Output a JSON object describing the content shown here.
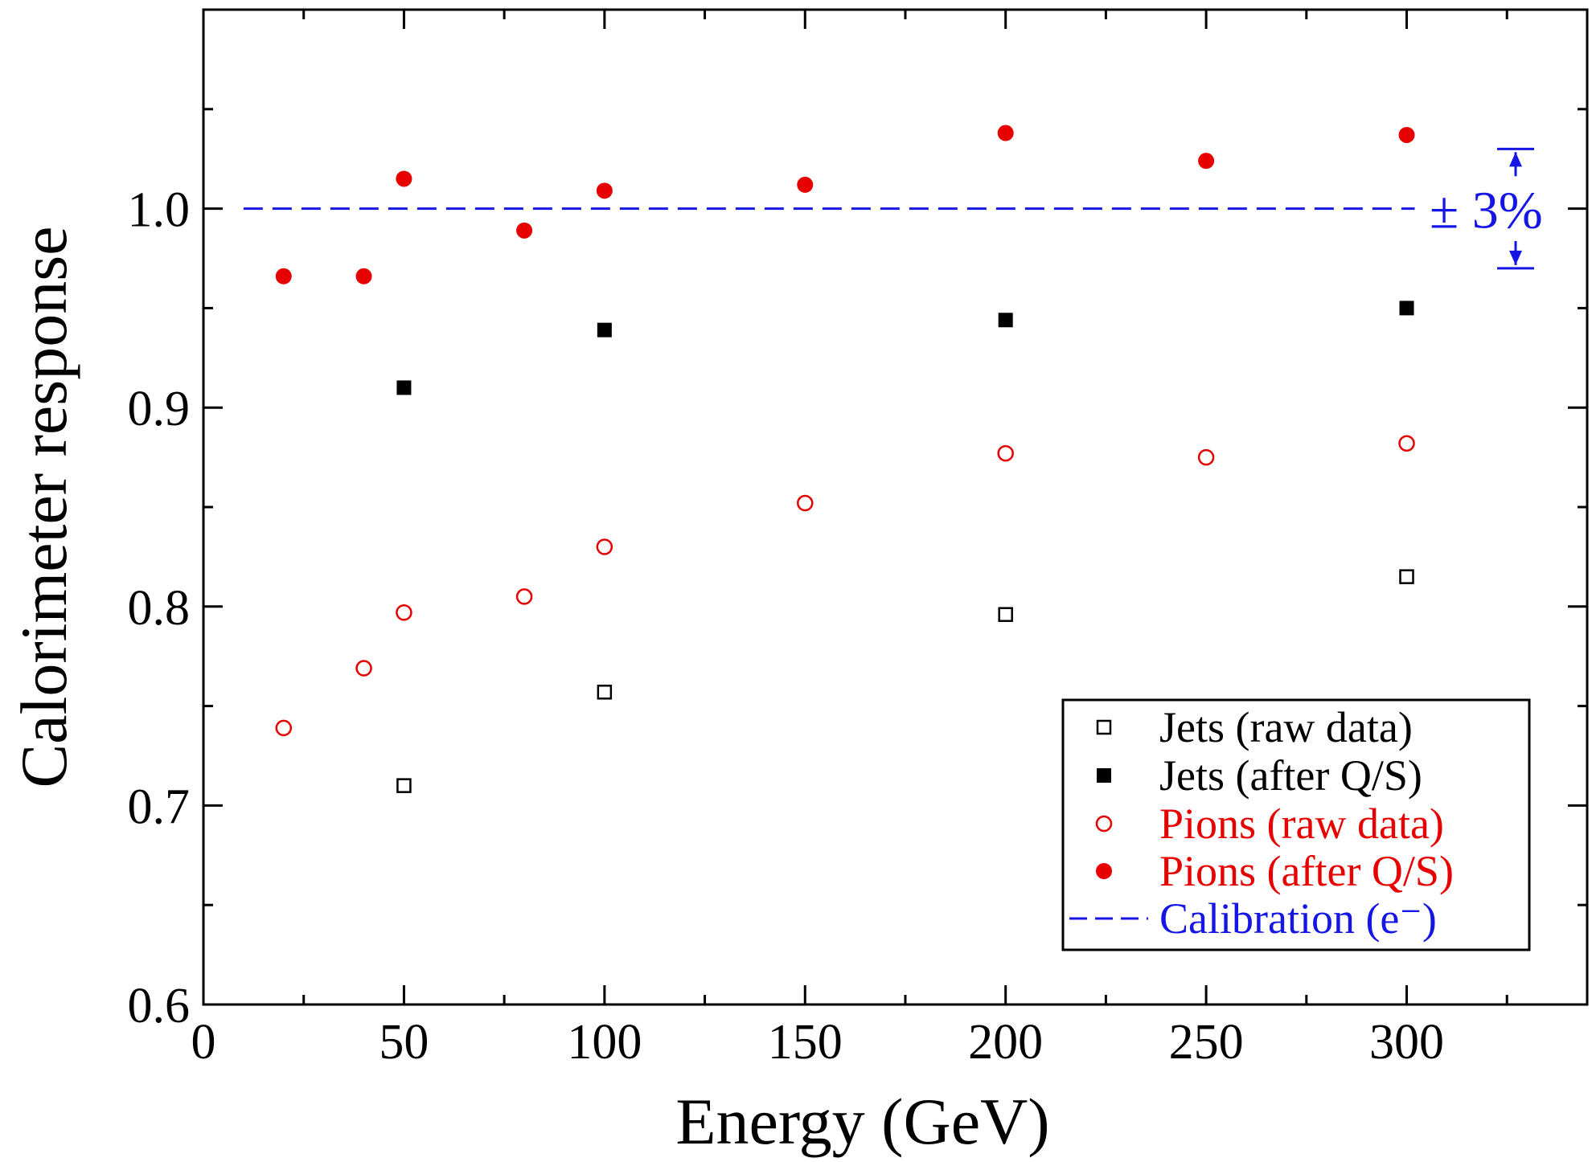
{
  "chart_data": {
    "type": "scatter",
    "xlabel": "Energy (GeV)",
    "ylabel": "Calorimeter response",
    "xlim": [
      0,
      345
    ],
    "ylim": [
      0.6,
      1.1
    ],
    "xticks": [
      0,
      50,
      100,
      150,
      200,
      250,
      300
    ],
    "xtick_labels": [
      "0",
      "50",
      "100",
      "150",
      "200",
      "250",
      "300"
    ],
    "yticks": [
      0.6,
      0.7,
      0.8,
      0.9,
      1.0
    ],
    "ytick_labels": [
      "0.6",
      "0.7",
      "0.8",
      "0.9",
      "1.0"
    ],
    "grid": false,
    "legend_position": "bottom-right",
    "series": [
      {
        "name": "Jets (raw data)",
        "marker": "open-square",
        "color": "#000000",
        "points": [
          [
            50,
            0.71
          ],
          [
            100,
            0.757
          ],
          [
            200,
            0.796
          ],
          [
            300,
            0.815
          ]
        ]
      },
      {
        "name": "Jets (after Q/S)",
        "marker": "filled-square",
        "color": "#000000",
        "points": [
          [
            50,
            0.91
          ],
          [
            100,
            0.939
          ],
          [
            200,
            0.944
          ],
          [
            300,
            0.95
          ]
        ]
      },
      {
        "name": "Pions (raw data)",
        "marker": "open-circle",
        "color": "#e60000",
        "points": [
          [
            20,
            0.739
          ],
          [
            40,
            0.769
          ],
          [
            50,
            0.797
          ],
          [
            80,
            0.805
          ],
          [
            100,
            0.83
          ],
          [
            150,
            0.852
          ],
          [
            200,
            0.877
          ],
          [
            250,
            0.875
          ],
          [
            300,
            0.882
          ]
        ]
      },
      {
        "name": "Pions (after Q/S)",
        "marker": "filled-circle",
        "color": "#e60000",
        "points": [
          [
            20,
            0.966
          ],
          [
            40,
            0.966
          ],
          [
            50,
            1.015
          ],
          [
            80,
            0.989
          ],
          [
            100,
            1.009
          ],
          [
            150,
            1.012
          ],
          [
            200,
            1.038
          ],
          [
            250,
            1.024
          ],
          [
            300,
            1.037
          ]
        ]
      }
    ],
    "reference_line": {
      "name": "Calibration (e⁻)",
      "y": 1.0,
      "x_range": [
        10,
        302
      ],
      "style": "dashed",
      "color": "#1515e6"
    },
    "annotation": {
      "text": "± 3%",
      "x": 330,
      "y_range": [
        0.97,
        1.03
      ],
      "color": "#1515e6"
    }
  }
}
